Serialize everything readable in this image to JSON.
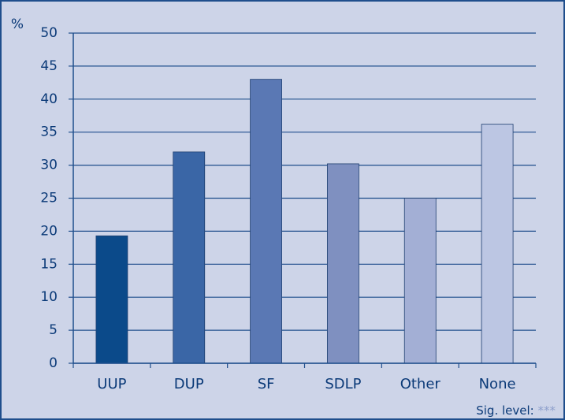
{
  "chart_data": {
    "type": "bar",
    "y_label": "%",
    "categories": [
      "UUP",
      "DUP",
      "SF",
      "SDLP",
      "Other",
      "None"
    ],
    "values": [
      19.3,
      32,
      43,
      30.2,
      25,
      36.2
    ],
    "colors": [
      "#0b4a8a",
      "#3a66a6",
      "#5a78b4",
      "#7f90c0",
      "#a3afd5",
      "#bcc6e3"
    ],
    "ylim": [
      0,
      50
    ],
    "yticks": [
      0,
      5,
      10,
      15,
      20,
      25,
      30,
      35,
      40,
      45,
      50
    ],
    "grid": true,
    "annotation": {
      "label": "Sig. level:",
      "marker": "***"
    }
  }
}
